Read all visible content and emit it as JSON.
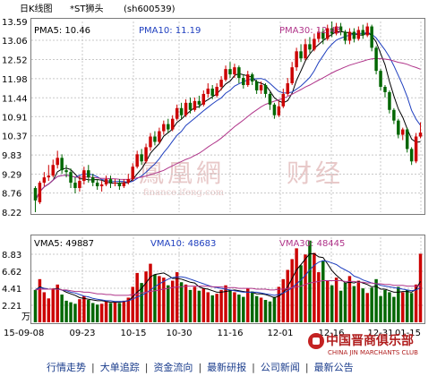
{
  "header": {
    "title": "日K线图",
    "name": "*ST狮头",
    "code": "(sh600539)"
  },
  "price_legend": {
    "ma5": "PMA5: 10.46",
    "ma10": "PMA10: 11.19",
    "ma30": "PMA30: 12.45"
  },
  "volume_legend": {
    "ma5": "VMA5: 49887",
    "ma10": "VMA10: 48683",
    "ma30": "VMA30: 48445"
  },
  "volume_unit": "万",
  "watermark": {
    "main": "鳳凰網",
    "side": "财经",
    "url": "finance.ifeng.com"
  },
  "logo": {
    "cn": "中国晋商俱乐部",
    "en": "CHINA JIN MARCHANTS CLUB"
  },
  "nav": {
    "items": [
      "行情走势",
      "大单追踪",
      "资金流向",
      "最新研报",
      "公司新闻",
      "最新公告"
    ]
  },
  "colors": {
    "up": "#cc0000",
    "down": "#006600",
    "ma5": "#000000",
    "ma10": "#1f3fbf",
    "ma30": "#b0358a"
  },
  "chart_data": [
    {
      "type": "candlestick",
      "title": "日K线图",
      "yticks": [
        13.59,
        13.06,
        12.52,
        11.98,
        11.44,
        10.91,
        10.37,
        9.83,
        9.29,
        8.76,
        8.22
      ],
      "ylim": [
        8.22,
        13.59
      ],
      "xticks": [
        "15-09-08",
        "09-23",
        "10-15",
        "10-30",
        "11-16",
        "12-01",
        "12-16",
        "12-31",
        "01-15"
      ],
      "grid": true,
      "ohlc": [
        [
          8.9,
          8.55,
          8.95,
          8.22
        ],
        [
          8.5,
          9.05,
          9.1,
          8.45
        ],
        [
          9.05,
          9.2,
          9.35,
          8.95
        ],
        [
          9.2,
          9.25,
          9.55,
          9.1
        ],
        [
          9.25,
          9.55,
          9.7,
          9.2
        ],
        [
          9.55,
          9.75,
          9.95,
          9.45
        ],
        [
          9.75,
          9.4,
          9.85,
          9.3
        ],
        [
          9.4,
          9.35,
          9.55,
          9.2
        ],
        [
          9.35,
          9.05,
          9.45,
          8.9
        ],
        [
          9.05,
          8.9,
          9.2,
          8.75
        ],
        [
          8.9,
          9.1,
          9.25,
          8.8
        ],
        [
          9.1,
          9.4,
          9.5,
          9.0
        ],
        [
          9.4,
          9.2,
          9.55,
          9.05
        ],
        [
          9.2,
          9.05,
          9.3,
          8.95
        ],
        [
          9.05,
          8.95,
          9.15,
          8.85
        ],
        [
          8.95,
          9.0,
          9.1,
          8.8
        ],
        [
          9.0,
          9.15,
          9.25,
          8.95
        ],
        [
          9.15,
          9.05,
          9.25,
          8.9
        ],
        [
          9.05,
          9.05,
          9.15,
          8.95
        ],
        [
          9.05,
          8.95,
          9.15,
          8.85
        ],
        [
          8.95,
          9.05,
          9.15,
          8.9
        ],
        [
          9.05,
          9.15,
          9.3,
          9.0
        ],
        [
          9.15,
          9.5,
          9.6,
          9.1
        ],
        [
          9.5,
          9.85,
          9.95,
          9.45
        ],
        [
          9.85,
          9.65,
          10.0,
          9.55
        ],
        [
          9.65,
          10.05,
          10.15,
          9.6
        ],
        [
          10.05,
          10.35,
          10.45,
          9.95
        ],
        [
          10.35,
          10.2,
          10.5,
          10.1
        ],
        [
          10.2,
          10.5,
          10.6,
          10.15
        ],
        [
          10.5,
          10.7,
          10.8,
          10.4
        ],
        [
          10.7,
          10.55,
          10.85,
          10.45
        ],
        [
          10.55,
          10.85,
          10.95,
          10.5
        ],
        [
          10.85,
          11.15,
          11.25,
          10.8
        ],
        [
          11.15,
          10.95,
          11.3,
          10.85
        ],
        [
          10.95,
          11.3,
          11.4,
          10.9
        ],
        [
          11.3,
          11.1,
          11.45,
          11.0
        ],
        [
          11.1,
          11.35,
          11.45,
          11.05
        ],
        [
          11.35,
          11.25,
          11.5,
          11.15
        ],
        [
          11.25,
          11.55,
          11.65,
          11.2
        ],
        [
          11.55,
          11.7,
          11.85,
          11.45
        ],
        [
          11.7,
          11.5,
          11.8,
          11.4
        ],
        [
          11.5,
          11.75,
          11.85,
          11.45
        ],
        [
          11.75,
          11.95,
          12.05,
          11.65
        ],
        [
          11.95,
          12.25,
          12.35,
          11.9
        ],
        [
          12.25,
          12.1,
          12.45,
          12.0
        ],
        [
          12.1,
          12.3,
          12.4,
          12.0
        ],
        [
          12.3,
          12.0,
          12.35,
          11.85
        ],
        [
          12.0,
          11.8,
          12.1,
          11.7
        ],
        [
          11.8,
          12.1,
          12.2,
          11.75
        ],
        [
          12.1,
          11.9,
          12.15,
          11.8
        ],
        [
          11.9,
          11.65,
          11.95,
          11.55
        ],
        [
          11.65,
          11.8,
          11.9,
          11.55
        ],
        [
          11.8,
          11.55,
          11.85,
          11.45
        ],
        [
          11.55,
          11.25,
          11.6,
          11.1
        ],
        [
          11.25,
          10.95,
          11.3,
          10.85
        ],
        [
          10.95,
          11.2,
          11.35,
          10.9
        ],
        [
          11.2,
          11.55,
          11.7,
          11.15
        ],
        [
          11.55,
          11.85,
          12.0,
          11.5
        ],
        [
          11.85,
          12.3,
          12.45,
          11.8
        ],
        [
          12.3,
          12.75,
          12.85,
          12.2
        ],
        [
          12.75,
          12.55,
          12.95,
          12.45
        ],
        [
          12.55,
          12.95,
          13.1,
          12.5
        ],
        [
          12.95,
          12.8,
          13.15,
          12.7
        ],
        [
          12.8,
          13.1,
          13.25,
          12.75
        ],
        [
          13.1,
          13.3,
          13.4,
          13.0
        ],
        [
          13.3,
          13.1,
          13.4,
          12.95
        ],
        [
          13.1,
          13.4,
          13.5,
          13.05
        ],
        [
          13.4,
          13.25,
          13.59,
          13.15
        ],
        [
          13.25,
          13.45,
          13.55,
          13.2
        ],
        [
          13.45,
          13.3,
          13.55,
          13.2
        ],
        [
          13.3,
          13.05,
          13.35,
          12.95
        ],
        [
          13.05,
          13.3,
          13.4,
          12.95
        ],
        [
          13.3,
          13.1,
          13.4,
          13.0
        ],
        [
          13.1,
          13.35,
          13.45,
          13.05
        ],
        [
          13.35,
          13.2,
          13.5,
          13.1
        ],
        [
          13.2,
          13.45,
          13.55,
          13.15
        ],
        [
          13.45,
          12.85,
          13.5,
          12.75
        ],
        [
          12.85,
          12.2,
          12.9,
          12.1
        ],
        [
          12.2,
          11.75,
          12.25,
          11.65
        ],
        [
          11.75,
          11.6,
          11.8,
          11.45
        ],
        [
          11.6,
          11.1,
          11.65,
          11.0
        ],
        [
          11.1,
          10.8,
          11.15,
          10.7
        ],
        [
          10.8,
          10.4,
          10.85,
          10.3
        ],
        [
          10.4,
          10.55,
          10.6,
          10.25
        ],
        [
          10.55,
          10.0,
          10.6,
          9.9
        ],
        [
          10.0,
          9.65,
          10.05,
          9.55
        ],
        [
          9.65,
          10.35,
          10.45,
          9.6
        ],
        [
          10.35,
          10.46,
          10.75,
          10.3
        ]
      ]
    },
    {
      "type": "bar",
      "title": "",
      "ylabel": "万",
      "yticks": [
        8.83,
        6.62,
        4.41,
        2.21
      ],
      "ylim": [
        0,
        11.04
      ],
      "xticks": [
        "15-09-08",
        "09-23",
        "10-15",
        "10-30",
        "11-16",
        "12-01",
        "12-16",
        "12-31",
        "01-15"
      ],
      "grid": true,
      "values": [
        4.2,
        5.6,
        3.9,
        3.1,
        4.4,
        4.9,
        3.6,
        2.8,
        2.6,
        2.4,
        3.0,
        3.4,
        2.9,
        2.5,
        2.3,
        2.4,
        2.7,
        2.5,
        2.6,
        2.5,
        2.8,
        3.2,
        4.6,
        6.4,
        5.1,
        6.6,
        7.6,
        6.2,
        6.0,
        5.8,
        4.8,
        5.4,
        6.5,
        5.2,
        4.9,
        4.2,
        4.6,
        4.1,
        4.4,
        3.9,
        3.5,
        3.7,
        4.2,
        4.8,
        4.2,
        3.9,
        3.6,
        3.3,
        4.4,
        4.0,
        3.4,
        3.2,
        2.9,
        2.7,
        3.3,
        4.6,
        5.6,
        6.8,
        8.2,
        9.6,
        7.4,
        8.8,
        10.6,
        9.0,
        6.5,
        8.0,
        5.4,
        4.8,
        5.8,
        4.1,
        5.1,
        6.0,
        4.7,
        5.4,
        4.4,
        3.8,
        4.5,
        5.6,
        3.4,
        4.2,
        3.9,
        3.3,
        4.6,
        3.9,
        4.2,
        3.8,
        4.9,
        8.9
      ],
      "ma5": [
        4.2,
        4.6,
        4.4,
        4.3,
        4.3,
        4.4,
        4.2,
        3.9,
        3.7,
        3.5,
        3.2,
        3.1,
        3.0,
        2.9,
        2.8,
        2.8,
        2.7,
        2.6,
        2.6,
        2.6,
        2.7,
        2.8,
        3.3,
        3.9,
        4.4,
        5.1,
        5.9,
        6.2,
        6.3,
        6.4,
        6.1,
        5.7,
        5.7,
        5.6,
        5.4,
        5.2,
        5.1,
        4.6,
        4.4,
        4.3,
        4.1,
        3.9,
        3.9,
        4.0,
        4.1,
        4.2,
        4.1,
        4.0,
        3.9,
        3.9,
        3.7,
        3.7,
        3.6,
        3.4,
        3.2,
        3.4,
        3.8,
        4.6,
        5.7,
        6.8,
        7.5,
        8.2,
        8.9,
        8.9,
        8.5,
        8.4,
        7.6,
        6.7,
        6.1,
        5.6,
        5.1,
        5.2,
        5.1,
        5.3,
        5.1,
        4.9,
        4.6,
        4.7,
        4.3,
        4.3,
        4.1,
        3.9,
        3.9,
        4.0,
        4.0,
        3.9,
        4.3,
        5.3
      ],
      "ma10": [
        4.2,
        4.5,
        4.4,
        4.3,
        4.3,
        4.3,
        4.2,
        4.1,
        3.9,
        3.8,
        3.6,
        3.4,
        3.3,
        3.1,
        3.0,
        2.9,
        2.8,
        2.8,
        2.7,
        2.7,
        2.7,
        2.8,
        3.0,
        3.3,
        3.5,
        3.8,
        4.2,
        4.6,
        5.0,
        5.3,
        5.6,
        5.8,
        5.9,
        5.9,
        5.8,
        5.6,
        5.4,
        5.2,
        5.0,
        4.8,
        4.6,
        4.5,
        4.4,
        4.3,
        4.2,
        4.1,
        4.0,
        3.9,
        3.9,
        3.9,
        3.9,
        3.8,
        3.7,
        3.6,
        3.5,
        3.6,
        3.8,
        4.1,
        4.5,
        5.0,
        5.5,
        6.1,
        6.8,
        7.4,
        7.8,
        8.0,
        7.9,
        7.7,
        7.5,
        7.1,
        6.8,
        6.5,
        6.0,
        5.8,
        5.5,
        5.3,
        5.1,
        5.0,
        4.8,
        4.7,
        4.6,
        4.5,
        4.4,
        4.3,
        4.2,
        4.1,
        4.2,
        4.5
      ],
      "ma30": [
        4.2,
        4.3,
        4.3,
        4.3,
        4.3,
        4.3,
        4.2,
        4.2,
        4.1,
        4.0,
        4.0,
        3.9,
        3.9,
        3.8,
        3.7,
        3.7,
        3.6,
        3.6,
        3.5,
        3.5,
        3.5,
        3.5,
        3.6,
        3.7,
        3.8,
        3.9,
        4.0,
        4.1,
        4.2,
        4.3,
        4.4,
        4.5,
        4.6,
        4.6,
        4.7,
        4.7,
        4.7,
        4.7,
        4.7,
        4.7,
        4.6,
        4.6,
        4.6,
        4.5,
        4.5,
        4.5,
        4.4,
        4.4,
        4.4,
        4.4,
        4.3,
        4.3,
        4.3,
        4.2,
        4.2,
        4.3,
        4.3,
        4.4,
        4.5,
        4.6,
        4.7,
        4.9,
        5.1,
        5.2,
        5.3,
        5.4,
        5.4,
        5.4,
        5.4,
        5.4,
        5.3,
        5.3,
        5.3,
        5.2,
        5.2,
        5.1,
        5.1,
        5.0,
        5.0,
        4.9,
        4.9,
        4.8,
        4.8,
        4.8,
        4.7,
        4.7,
        4.7,
        4.8
      ]
    }
  ]
}
